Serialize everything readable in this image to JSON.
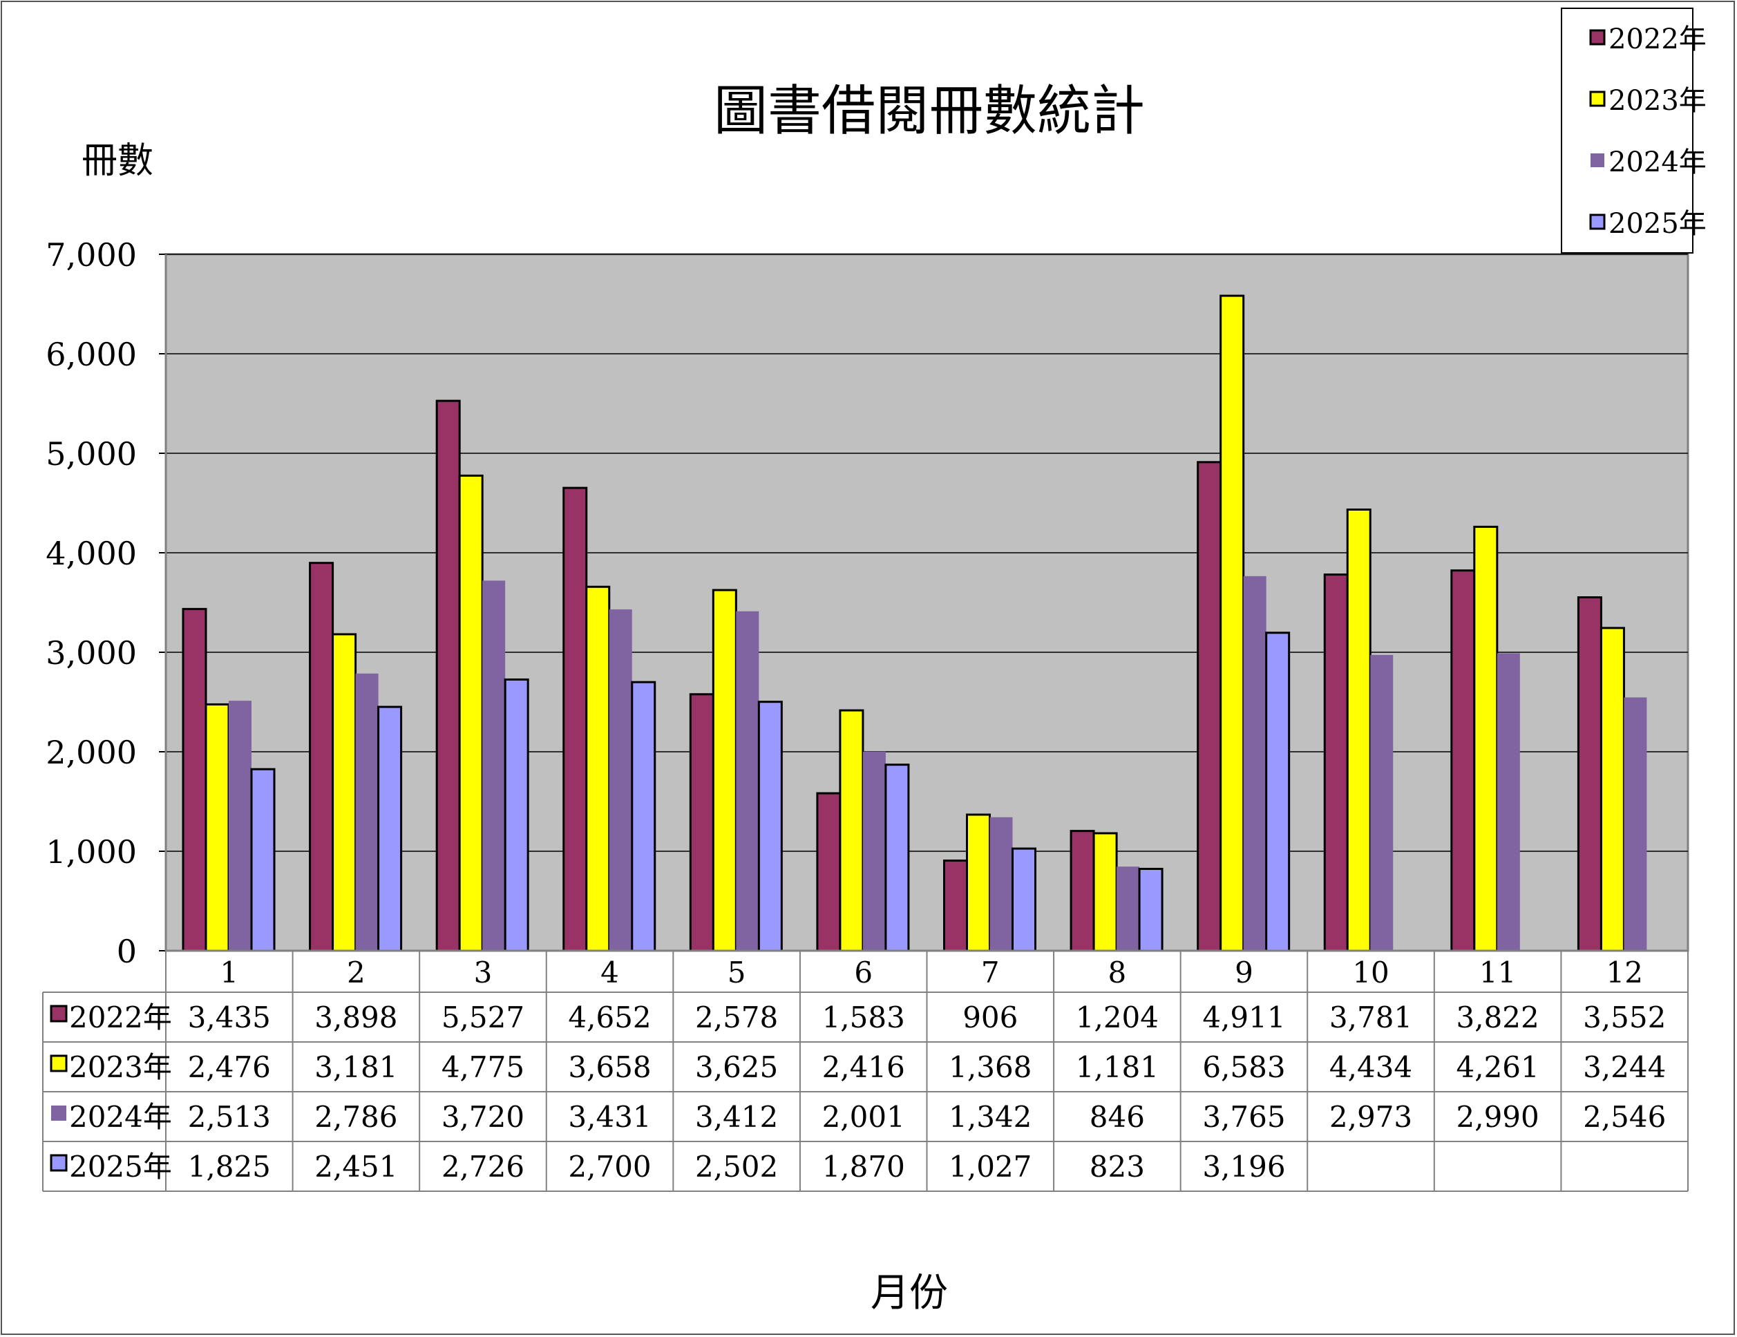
{
  "chart_data": {
    "type": "bar",
    "title": "圖書借閱冊數統計",
    "xlabel": "月份",
    "ylabel": "冊數",
    "ylim": [
      0,
      7000
    ],
    "yticks": [
      "0",
      "1,000",
      "2,000",
      "3,000",
      "4,000",
      "5,000",
      "6,000",
      "7,000"
    ],
    "categories": [
      "1",
      "2",
      "3",
      "4",
      "5",
      "6",
      "7",
      "8",
      "9",
      "10",
      "11",
      "12"
    ],
    "grid": true,
    "legend_position": "top-right",
    "data_table": true,
    "series": [
      {
        "name": "2022年",
        "color": "#993366",
        "values": [
          3435,
          3898,
          5527,
          4652,
          2578,
          1583,
          906,
          1204,
          4911,
          3781,
          3822,
          3552
        ],
        "labels": [
          "3,435",
          "3,898",
          "5,527",
          "4,652",
          "2,578",
          "1,583",
          "906",
          "1,204",
          "4,911",
          "3,781",
          "3,822",
          "3,552"
        ]
      },
      {
        "name": "2023年",
        "color": "#ffff00",
        "values": [
          2476,
          3181,
          4775,
          3658,
          3625,
          2416,
          1368,
          1181,
          6583,
          4434,
          4261,
          3244
        ],
        "labels": [
          "2,476",
          "3,181",
          "4,775",
          "3,658",
          "3,625",
          "2,416",
          "1,368",
          "1,181",
          "6,583",
          "4,434",
          "4,261",
          "3,244"
        ]
      },
      {
        "name": "2024年",
        "color": "#8064a2",
        "values": [
          2513,
          2786,
          3720,
          3431,
          3412,
          2001,
          1342,
          846,
          3765,
          2973,
          2990,
          2546
        ],
        "labels": [
          "2,513",
          "2,786",
          "3,720",
          "3,431",
          "3,412",
          "2,001",
          "1,342",
          "846",
          "3,765",
          "2,973",
          "2,990",
          "2,546"
        ]
      },
      {
        "name": "2025年",
        "color": "#9999ff",
        "values": [
          1825,
          2451,
          2726,
          2700,
          2502,
          1870,
          1027,
          823,
          3196,
          null,
          null,
          null
        ],
        "labels": [
          "1,825",
          "2,451",
          "2,726",
          "2,700",
          "2,502",
          "1,870",
          "1,027",
          "823",
          "3,196",
          "",
          "",
          ""
        ]
      }
    ]
  },
  "colors": {
    "plot_background": "#c0c0c0",
    "gridline": "#000000"
  }
}
